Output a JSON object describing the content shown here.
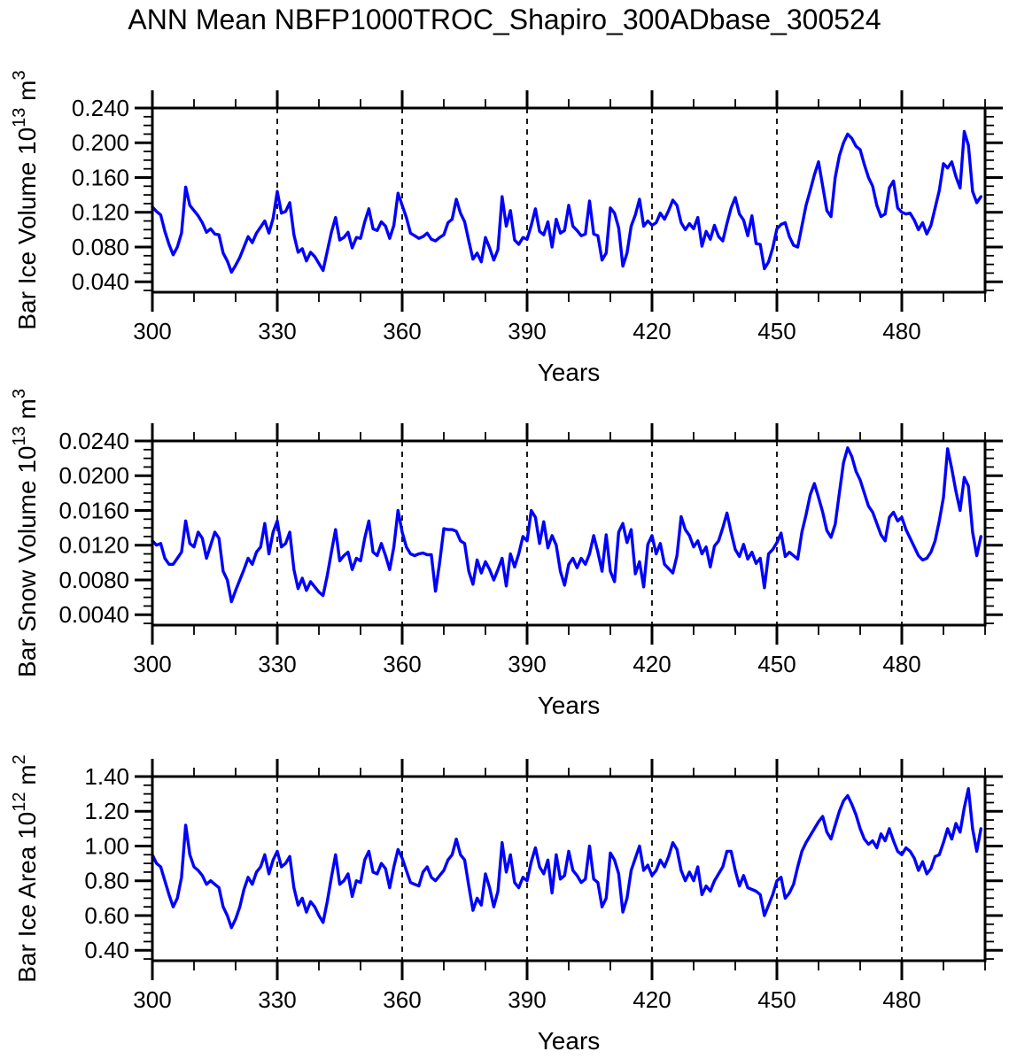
{
  "title": "ANN Mean NBFP1000TROC_Shapiro_300ADbase_300524",
  "line_color": "#0000ff",
  "chart_data": [
    {
      "type": "line",
      "panel": "bar-ice-volume",
      "ylabel": "Bar Ice Volume 10¹³ m³",
      "ylabel_parts": {
        "base": "Bar Ice Volume 10",
        "exp": "13",
        "unit": " m",
        "unit_exp": "3"
      },
      "xlabel": "Years",
      "x_start": 300,
      "x_step": 1,
      "xlim": [
        300,
        500
      ],
      "xticks": [
        300,
        330,
        360,
        390,
        420,
        450,
        480
      ],
      "x_minor_step": 10,
      "grid_x": [
        330,
        360,
        390,
        420,
        450,
        480
      ],
      "ylim": [
        0.028,
        0.24
      ],
      "ytick_values": [
        0.04,
        0.08,
        0.12,
        0.16,
        0.2,
        0.24
      ],
      "ytick_labels": [
        "0.040",
        "0.080",
        "0.120",
        "0.160",
        "0.200",
        "0.240"
      ],
      "y_minor_step": 0.01,
      "grid": "x-dashed",
      "legend": "none",
      "line_color": "#0000ff",
      "values": [
        0.126,
        0.121,
        0.117,
        0.098,
        0.083,
        0.071,
        0.08,
        0.096,
        0.149,
        0.128,
        0.122,
        0.116,
        0.108,
        0.097,
        0.101,
        0.095,
        0.094,
        0.073,
        0.064,
        0.051,
        0.059,
        0.068,
        0.08,
        0.092,
        0.085,
        0.096,
        0.103,
        0.11,
        0.096,
        0.113,
        0.144,
        0.119,
        0.121,
        0.131,
        0.094,
        0.074,
        0.078,
        0.064,
        0.074,
        0.069,
        0.061,
        0.053,
        0.075,
        0.097,
        0.114,
        0.088,
        0.091,
        0.097,
        0.079,
        0.091,
        0.09,
        0.109,
        0.124,
        0.101,
        0.099,
        0.109,
        0.104,
        0.09,
        0.105,
        0.142,
        0.128,
        0.114,
        0.096,
        0.093,
        0.09,
        0.092,
        0.096,
        0.089,
        0.087,
        0.091,
        0.094,
        0.108,
        0.112,
        0.135,
        0.119,
        0.109,
        0.087,
        0.066,
        0.073,
        0.063,
        0.091,
        0.079,
        0.065,
        0.077,
        0.138,
        0.104,
        0.122,
        0.088,
        0.083,
        0.091,
        0.089,
        0.105,
        0.124,
        0.098,
        0.094,
        0.109,
        0.08,
        0.112,
        0.096,
        0.099,
        0.128,
        0.104,
        0.099,
        0.093,
        0.095,
        0.133,
        0.095,
        0.093,
        0.065,
        0.073,
        0.125,
        0.119,
        0.102,
        0.058,
        0.073,
        0.104,
        0.117,
        0.135,
        0.104,
        0.11,
        0.105,
        0.108,
        0.119,
        0.112,
        0.122,
        0.134,
        0.128,
        0.108,
        0.1,
        0.107,
        0.101,
        0.114,
        0.081,
        0.098,
        0.089,
        0.105,
        0.092,
        0.087,
        0.107,
        0.125,
        0.137,
        0.118,
        0.111,
        0.093,
        0.116,
        0.084,
        0.083,
        0.055,
        0.063,
        0.079,
        0.101,
        0.106,
        0.108,
        0.092,
        0.082,
        0.08,
        0.104,
        0.128,
        0.145,
        0.163,
        0.178,
        0.15,
        0.122,
        0.115,
        0.16,
        0.185,
        0.2,
        0.21,
        0.205,
        0.196,
        0.192,
        0.175,
        0.16,
        0.15,
        0.128,
        0.115,
        0.118,
        0.148,
        0.156,
        0.125,
        0.12,
        0.118,
        0.119,
        0.111,
        0.1,
        0.108,
        0.095,
        0.105,
        0.125,
        0.145,
        0.176,
        0.171,
        0.178,
        0.161,
        0.148,
        0.213,
        0.197,
        0.144,
        0.131,
        0.138
      ]
    },
    {
      "type": "line",
      "panel": "bar-snow-volume",
      "ylabel": "Bar Snow Volume 10¹³ m³",
      "ylabel_parts": {
        "base": "Bar Snow Volume 10",
        "exp": "13",
        "unit": " m",
        "unit_exp": "3"
      },
      "xlabel": "Years",
      "x_start": 300,
      "x_step": 1,
      "xlim": [
        300,
        500
      ],
      "xticks": [
        300,
        330,
        360,
        390,
        420,
        450,
        480
      ],
      "x_minor_step": 10,
      "grid_x": [
        330,
        360,
        390,
        420,
        450,
        480
      ],
      "ylim": [
        0.0028,
        0.024
      ],
      "ytick_values": [
        0.004,
        0.008,
        0.012,
        0.016,
        0.02,
        0.024
      ],
      "ytick_labels": [
        "0.0040",
        "0.0080",
        "0.0120",
        "0.0160",
        "0.0200",
        "0.0240"
      ],
      "y_minor_step": 0.001,
      "grid": "x-dashed",
      "legend": "none",
      "line_color": "#0000ff",
      "values": [
        0.0125,
        0.012,
        0.0122,
        0.0105,
        0.0098,
        0.0098,
        0.0105,
        0.0112,
        0.0148,
        0.0122,
        0.0118,
        0.0135,
        0.0128,
        0.0105,
        0.012,
        0.0135,
        0.0128,
        0.009,
        0.008,
        0.0055,
        0.0068,
        0.008,
        0.0092,
        0.0105,
        0.0098,
        0.0112,
        0.0118,
        0.0145,
        0.011,
        0.0135,
        0.0148,
        0.0118,
        0.0122,
        0.0135,
        0.0092,
        0.007,
        0.0082,
        0.0068,
        0.0078,
        0.0072,
        0.0066,
        0.0062,
        0.0085,
        0.0112,
        0.0138,
        0.0102,
        0.0108,
        0.0112,
        0.0092,
        0.0105,
        0.0102,
        0.0128,
        0.0148,
        0.0112,
        0.0108,
        0.0122,
        0.0108,
        0.0092,
        0.0118,
        0.016,
        0.0135,
        0.0118,
        0.011,
        0.0108,
        0.011,
        0.0111,
        0.0109,
        0.0109,
        0.0067,
        0.01,
        0.0139,
        0.0138,
        0.0138,
        0.0136,
        0.0125,
        0.0122,
        0.009,
        0.0075,
        0.0103,
        0.0088,
        0.0101,
        0.0092,
        0.008,
        0.0092,
        0.0105,
        0.0073,
        0.011,
        0.0095,
        0.011,
        0.013,
        0.0125,
        0.016,
        0.0152,
        0.0122,
        0.0147,
        0.0117,
        0.0131,
        0.012,
        0.009,
        0.0074,
        0.0098,
        0.0105,
        0.0094,
        0.0105,
        0.0098,
        0.011,
        0.0131,
        0.0112,
        0.009,
        0.0132,
        0.009,
        0.0078,
        0.0135,
        0.0145,
        0.0123,
        0.0138,
        0.0087,
        0.0101,
        0.0072,
        0.0121,
        0.0131,
        0.011,
        0.0122,
        0.0098,
        0.0093,
        0.0088,
        0.0108,
        0.0153,
        0.0138,
        0.0131,
        0.0118,
        0.0125,
        0.011,
        0.0118,
        0.0095,
        0.0119,
        0.0125,
        0.014,
        0.0157,
        0.0135,
        0.0115,
        0.0107,
        0.0121,
        0.0104,
        0.0112,
        0.0099,
        0.0105,
        0.0071,
        0.011,
        0.0115,
        0.0123,
        0.0134,
        0.0107,
        0.0112,
        0.0108,
        0.0104,
        0.0135,
        0.0155,
        0.0178,
        0.0191,
        0.0175,
        0.0158,
        0.0137,
        0.0129,
        0.0144,
        0.018,
        0.0215,
        0.0232,
        0.0222,
        0.0205,
        0.0195,
        0.018,
        0.0165,
        0.0158,
        0.0145,
        0.0132,
        0.0125,
        0.0152,
        0.0158,
        0.0148,
        0.0152,
        0.0138,
        0.0128,
        0.0118,
        0.0108,
        0.0103,
        0.0105,
        0.0112,
        0.0125,
        0.0148,
        0.0175,
        0.0231,
        0.0208,
        0.0182,
        0.016,
        0.0198,
        0.0188,
        0.0135,
        0.0108,
        0.013
      ]
    },
    {
      "type": "line",
      "panel": "bar-ice-area",
      "ylabel": "Bar Ice Area 10¹² m²",
      "ylabel_parts": {
        "base": "Bar Ice Area 10",
        "exp": "12",
        "unit": " m",
        "unit_exp": "2"
      },
      "xlabel": "Years",
      "x_start": 300,
      "x_step": 1,
      "xlim": [
        300,
        500
      ],
      "xticks": [
        300,
        330,
        360,
        390,
        420,
        450,
        480
      ],
      "x_minor_step": 10,
      "grid_x": [
        330,
        360,
        390,
        420,
        450,
        480
      ],
      "ylim": [
        0.34,
        1.4
      ],
      "ytick_values": [
        0.4,
        0.6,
        0.8,
        1.0,
        1.2,
        1.4
      ],
      "ytick_labels": [
        "0.40",
        "0.60",
        "0.80",
        "1.00",
        "1.20",
        "1.40"
      ],
      "y_minor_step": 0.05,
      "grid": "x-dashed",
      "legend": "none",
      "line_color": "#0000ff",
      "values": [
        0.95,
        0.9,
        0.88,
        0.8,
        0.72,
        0.65,
        0.7,
        0.82,
        1.12,
        0.95,
        0.88,
        0.86,
        0.83,
        0.78,
        0.8,
        0.78,
        0.76,
        0.65,
        0.6,
        0.53,
        0.58,
        0.65,
        0.75,
        0.82,
        0.78,
        0.85,
        0.88,
        0.95,
        0.84,
        0.92,
        0.97,
        0.88,
        0.9,
        0.94,
        0.76,
        0.66,
        0.7,
        0.62,
        0.68,
        0.65,
        0.6,
        0.56,
        0.68,
        0.82,
        0.95,
        0.78,
        0.8,
        0.84,
        0.71,
        0.8,
        0.79,
        0.92,
        0.97,
        0.85,
        0.84,
        0.9,
        0.87,
        0.76,
        0.88,
        0.98,
        0.93,
        0.86,
        0.79,
        0.78,
        0.77,
        0.85,
        0.88,
        0.82,
        0.8,
        0.83,
        0.86,
        0.92,
        0.95,
        1.04,
        0.95,
        0.92,
        0.77,
        0.63,
        0.7,
        0.66,
        0.84,
        0.76,
        0.65,
        0.74,
        1.02,
        0.85,
        0.95,
        0.79,
        0.76,
        0.82,
        0.8,
        0.91,
        0.99,
        0.88,
        0.84,
        0.92,
        0.73,
        0.95,
        0.81,
        0.83,
        0.97,
        0.86,
        0.83,
        0.79,
        0.81,
        1.0,
        0.81,
        0.79,
        0.65,
        0.7,
        0.96,
        0.92,
        0.84,
        0.62,
        0.7,
        0.86,
        0.93,
        1.0,
        0.86,
        0.89,
        0.83,
        0.86,
        0.92,
        0.88,
        0.94,
        1.02,
        0.98,
        0.86,
        0.8,
        0.85,
        0.8,
        0.88,
        0.72,
        0.77,
        0.74,
        0.8,
        0.84,
        0.88,
        0.97,
        0.97,
        0.86,
        0.77,
        0.83,
        0.76,
        0.75,
        0.74,
        0.72,
        0.6,
        0.66,
        0.72,
        0.8,
        0.82,
        0.7,
        0.73,
        0.78,
        0.88,
        0.97,
        1.02,
        1.06,
        1.1,
        1.14,
        1.17,
        1.08,
        1.04,
        1.12,
        1.2,
        1.26,
        1.29,
        1.24,
        1.18,
        1.1,
        1.04,
        1.01,
        1.03,
        0.99,
        1.07,
        1.03,
        1.1,
        1.03,
        0.97,
        0.95,
        0.99,
        0.97,
        0.93,
        0.86,
        0.91,
        0.84,
        0.87,
        0.94,
        0.95,
        1.02,
        1.1,
        1.04,
        1.13,
        1.08,
        1.22,
        1.33,
        1.1,
        0.97,
        1.1
      ]
    }
  ]
}
